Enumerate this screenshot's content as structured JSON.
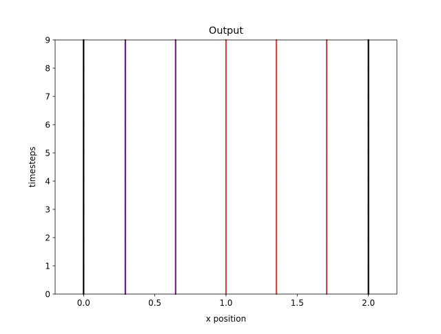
{
  "chart_data": {
    "type": "line",
    "title": "Output",
    "xlabel": "x position",
    "ylabel": "timesteps",
    "xlim": [
      -0.2,
      2.2
    ],
    "ylim": [
      0,
      9
    ],
    "x_ticks": [
      0.0,
      0.5,
      1.0,
      1.5,
      2.0
    ],
    "x_tick_labels": [
      "0.0",
      "0.5",
      "1.0",
      "1.5",
      "2.0"
    ],
    "y_ticks": [
      0,
      1,
      2,
      3,
      4,
      5,
      6,
      7,
      8,
      9
    ],
    "y_tick_labels": [
      "0",
      "1",
      "2",
      "3",
      "4",
      "5",
      "6",
      "7",
      "8",
      "9"
    ],
    "grid": false,
    "legend": false,
    "series": [
      {
        "x": [
          0.0,
          0.0,
          0.0,
          0.0,
          0.0,
          0.0,
          0.0,
          0.0,
          0.0,
          0.0
        ],
        "y": [
          0,
          1,
          2,
          3,
          4,
          5,
          6,
          7,
          8,
          9
        ],
        "color": "#000000"
      },
      {
        "x": [
          0.293,
          0.293,
          0.293,
          0.293,
          0.293,
          0.293,
          0.293,
          0.293,
          0.293,
          0.293
        ],
        "y": [
          0,
          1,
          2,
          3,
          4,
          5,
          6,
          7,
          8,
          9
        ],
        "color": "#6b1f7e"
      },
      {
        "x": [
          0.646,
          0.646,
          0.646,
          0.646,
          0.646,
          0.646,
          0.646,
          0.646,
          0.646,
          0.646
        ],
        "y": [
          0,
          1,
          2,
          3,
          4,
          5,
          6,
          7,
          8,
          9
        ],
        "color": "#7a2482"
      },
      {
        "x": [
          1.0,
          1.0,
          1.0,
          1.0,
          1.0,
          1.0,
          1.0,
          1.0,
          1.0,
          1.0
        ],
        "y": [
          0,
          1,
          2,
          3,
          4,
          5,
          6,
          7,
          8,
          9
        ],
        "color": "#cf4746"
      },
      {
        "x": [
          1.354,
          1.354,
          1.354,
          1.354,
          1.354,
          1.354,
          1.354,
          1.354,
          1.354,
          1.354
        ],
        "y": [
          0,
          1,
          2,
          3,
          4,
          5,
          6,
          7,
          8,
          9
        ],
        "color": "#cf4746"
      },
      {
        "x": [
          1.707,
          1.707,
          1.707,
          1.707,
          1.707,
          1.707,
          1.707,
          1.707,
          1.707,
          1.707
        ],
        "y": [
          0,
          1,
          2,
          3,
          4,
          5,
          6,
          7,
          8,
          9
        ],
        "color": "#cf4746"
      },
      {
        "x": [
          2.0,
          2.0,
          2.0,
          2.0,
          2.0,
          2.0,
          2.0,
          2.0,
          2.0,
          2.0
        ],
        "y": [
          0,
          1,
          2,
          3,
          4,
          5,
          6,
          7,
          8,
          9
        ],
        "color": "#000000"
      }
    ]
  }
}
